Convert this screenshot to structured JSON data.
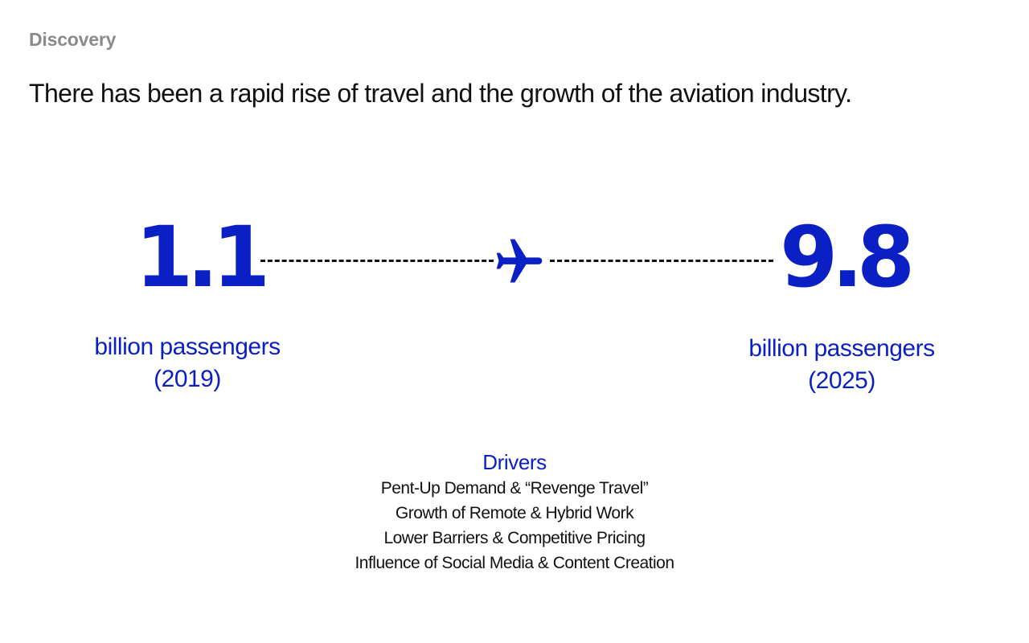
{
  "section_label": "Discovery",
  "headline": "There has been a rapid rise of travel and the growth of the aviation industry.",
  "stats": {
    "left": {
      "value": "1.1",
      "caption_line1": "billion passengers",
      "caption_line2": "(2019)"
    },
    "right": {
      "value": "9.8",
      "caption_line1": "billion passengers",
      "caption_line2": "(2025)"
    }
  },
  "icons": {
    "connector": "airplane-icon"
  },
  "colors": {
    "accent": "#0a1fc4",
    "text": "#111111",
    "muted": "#8a8a8a"
  },
  "drivers": {
    "title": "Drivers",
    "items": [
      "Pent-Up Demand & “Revenge Travel”",
      "Growth of Remote & Hybrid Work",
      "Lower Barriers & Competitive Pricing",
      "Influence of Social Media & Content Creation"
    ]
  }
}
